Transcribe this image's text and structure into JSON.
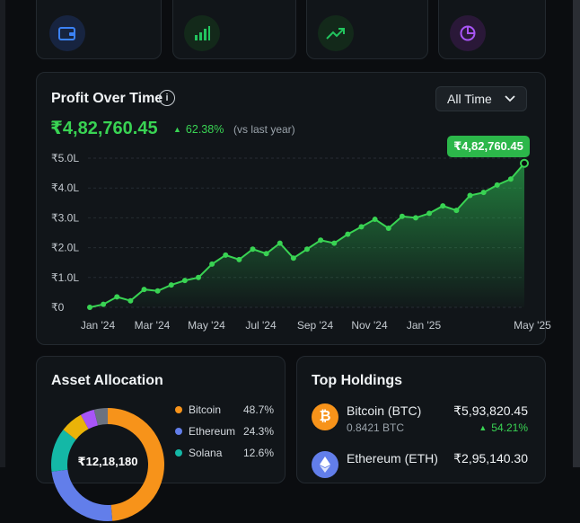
{
  "colors": {
    "accent": "#39d353",
    "bg": "#0b0d10",
    "card": "#111519"
  },
  "top_cards": [
    {
      "icon": "wallet-icon",
      "color": "#3b82f6"
    },
    {
      "icon": "bar-chart-icon",
      "color": "#22c55e"
    },
    {
      "icon": "trending-up-icon",
      "color": "#22c55e"
    },
    {
      "icon": "pie-chart-icon",
      "color": "#a855f7"
    }
  ],
  "profit": {
    "title": "Profit Over Time",
    "dropdown": "All Time",
    "value": "₹4,82,760.45",
    "change": "62.38%",
    "change_note": "(vs last year)",
    "tooltip": "₹4,82,760.45"
  },
  "chart_data": {
    "type": "line",
    "title": "Profit Over Time",
    "y_ticks": [
      "₹0",
      "₹1.0L",
      "₹2.0L",
      "₹3.0L",
      "₹4.0L",
      "₹5.0L"
    ],
    "ylim": [
      0,
      500000
    ],
    "x_ticks": [
      "Jan '24",
      "Mar '24",
      "May '24",
      "Jul '24",
      "Sep '24",
      "Nov '24",
      "Jan '25",
      "May '25"
    ],
    "x_tick_positions": [
      0,
      2,
      4,
      6,
      8,
      10,
      12,
      16
    ],
    "grid": true,
    "series": [
      {
        "x": [
          0,
          0.5,
          1,
          1.5,
          2,
          2.5,
          3,
          3.5,
          4,
          4.5,
          5,
          5.5,
          6,
          6.5,
          7,
          7.5,
          8,
          8.5,
          9,
          9.5,
          10,
          10.5,
          11,
          11.5,
          12,
          12.5,
          13,
          13.5,
          14,
          14.5,
          15,
          15.5,
          16
        ],
        "values": [
          0,
          10000,
          35000,
          22000,
          60000,
          55000,
          75000,
          90000,
          100000,
          145000,
          175000,
          160000,
          195000,
          180000,
          215000,
          165000,
          195000,
          225000,
          215000,
          245000,
          270000,
          295000,
          265000,
          305000,
          300000,
          315000,
          340000,
          325000,
          375000,
          385000,
          410000,
          430000,
          482760
        ]
      }
    ]
  },
  "allocation": {
    "title": "Asset Allocation",
    "total": "₹12,18,180",
    "items": [
      {
        "name": "Bitcoin",
        "pct": "48.7%",
        "value": 48.7,
        "color": "#f7931a"
      },
      {
        "name": "Ethereum",
        "pct": "24.3%",
        "value": 24.3,
        "color": "#627eea"
      },
      {
        "name": "Solana",
        "pct": "12.6%",
        "value": 12.6,
        "color": "#14b8a6"
      }
    ],
    "donut_other": [
      {
        "value": 6.5,
        "color": "#eab308"
      },
      {
        "value": 4.0,
        "color": "#a855f7"
      },
      {
        "value": 3.9,
        "color": "#6b7280"
      }
    ]
  },
  "holdings": {
    "title": "Top Holdings",
    "items": [
      {
        "name": "Bitcoin (BTC)",
        "amount": "0.8421 BTC",
        "value": "₹5,93,820.45",
        "change": "54.21%",
        "color": "#f7931a",
        "glyph": "₿"
      },
      {
        "name": "Ethereum (ETH)",
        "value": "₹2,95,140.30",
        "color": "#627eea",
        "glyph": "◆"
      }
    ]
  }
}
